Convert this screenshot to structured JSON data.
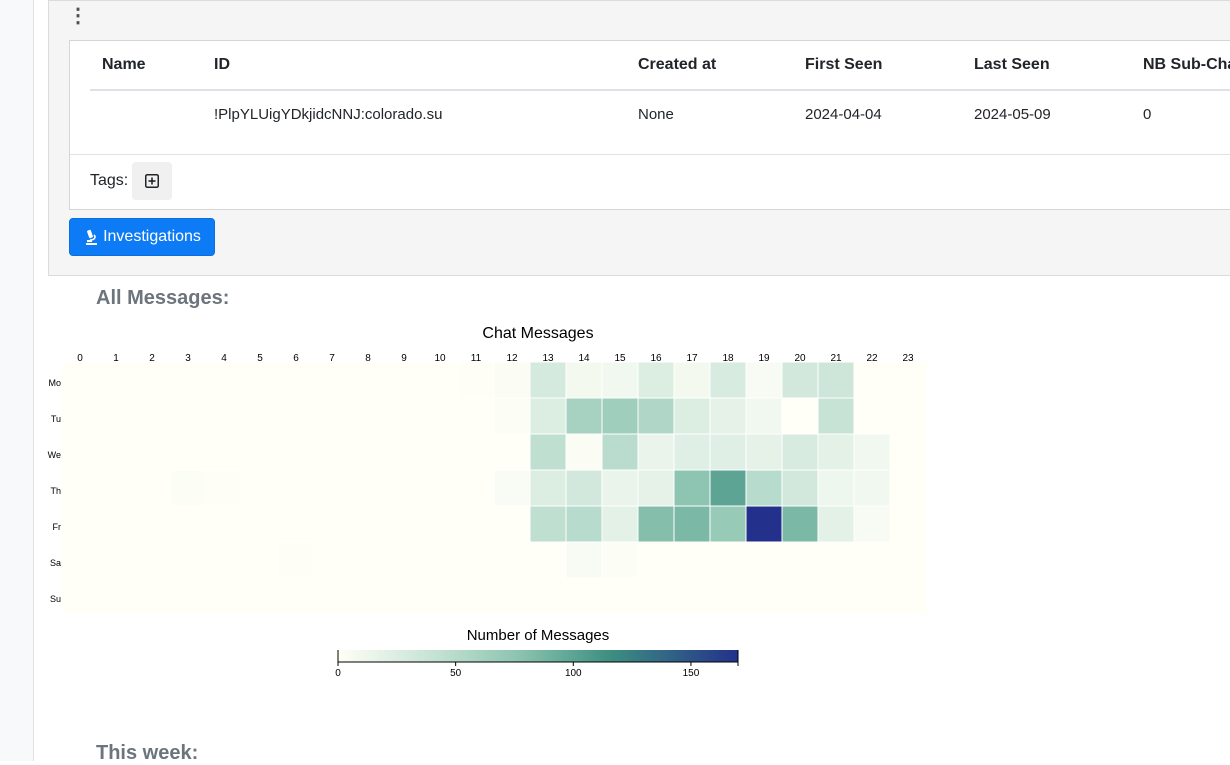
{
  "table": {
    "headers": [
      "Name",
      "ID",
      "Created at",
      "First Seen",
      "Last Seen",
      "NB Sub-Cha"
    ],
    "rows": [
      [
        "",
        "!PlpYLUigYDkjidcNNJ:colorado.su",
        "None",
        "2024-04-04",
        "2024-05-09",
        "0"
      ]
    ]
  },
  "tags": {
    "label": "Tags:",
    "add_icon": "plus-square-icon"
  },
  "actions": {
    "investigations_label": "Investigations",
    "investigations_icon": "microscope-icon"
  },
  "sections": {
    "all_messages": "All Messages:",
    "this_week": "This week:"
  },
  "chart_data": {
    "type": "heatmap",
    "title": "Chat Messages",
    "x": [
      "0",
      "1",
      "2",
      "3",
      "4",
      "5",
      "6",
      "7",
      "8",
      "9",
      "10",
      "11",
      "12",
      "13",
      "14",
      "15",
      "16",
      "17",
      "18",
      "19",
      "20",
      "21",
      "22",
      "23"
    ],
    "y": [
      "Mo",
      "Tu",
      "We",
      "Th",
      "Fr",
      "Sa",
      "Su"
    ],
    "values": [
      [
        0,
        0,
        0,
        0,
        0,
        0,
        0,
        0,
        0,
        0,
        0,
        1,
        3,
        30,
        8,
        10,
        25,
        8,
        28,
        5,
        32,
        35,
        0,
        0
      ],
      [
        0,
        0,
        0,
        0,
        0,
        0,
        0,
        0,
        0,
        0,
        0,
        0,
        2,
        25,
        60,
        65,
        55,
        25,
        18,
        10,
        0,
        40,
        0,
        0
      ],
      [
        0,
        0,
        0,
        0,
        0,
        0,
        0,
        0,
        0,
        0,
        0,
        0,
        0,
        45,
        3,
        48,
        15,
        22,
        22,
        18,
        28,
        20,
        10,
        0
      ],
      [
        0,
        0,
        0,
        2,
        1,
        0,
        0,
        0,
        0,
        0,
        0,
        0,
        4,
        25,
        32,
        15,
        18,
        75,
        100,
        50,
        32,
        12,
        10,
        0
      ],
      [
        0,
        0,
        0,
        0,
        0,
        0,
        0,
        0,
        0,
        0,
        0,
        0,
        0,
        45,
        50,
        20,
        80,
        85,
        70,
        170,
        85,
        20,
        5,
        0
      ],
      [
        0,
        0,
        0,
        0,
        0,
        0,
        1,
        0,
        0,
        0,
        0,
        0,
        0,
        0,
        5,
        2,
        0,
        0,
        0,
        0,
        0,
        0,
        0,
        0
      ],
      [
        0,
        0,
        0,
        0,
        0,
        0,
        0,
        0,
        0,
        0,
        0,
        0,
        0,
        0,
        0,
        0,
        0,
        0,
        0,
        0,
        0,
        0,
        0,
        0
      ]
    ],
    "colorbar": {
      "label": "Number of Messages",
      "ticks": [
        0,
        50,
        100,
        150
      ],
      "range": [
        0,
        170
      ]
    },
    "colorscale": [
      "#fffff7",
      "#c3e1d4",
      "#8cc4b0",
      "#3d8f81",
      "#23318c"
    ]
  }
}
